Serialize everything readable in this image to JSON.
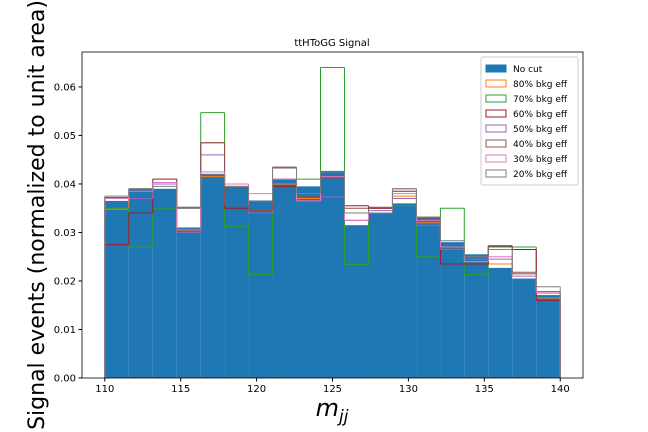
{
  "chart_data": {
    "type": "histogram",
    "title": "ttHToGG Signal",
    "xlabel": {
      "base": "m",
      "sub": "jj"
    },
    "ylabel": "Signal events (normalized to unit area)",
    "bins": [
      110,
      111.58,
      113.16,
      114.74,
      116.32,
      117.89,
      119.47,
      121.05,
      122.63,
      124.21,
      125.79,
      127.37,
      128.95,
      130.53,
      132.11,
      133.68,
      135.26,
      136.84,
      138.42,
      140
    ],
    "series": [
      {
        "name": "No cut",
        "color": "#1f77b4",
        "style": "filled",
        "values": [
          0.0365,
          0.039,
          0.039,
          0.031,
          0.042,
          0.0395,
          0.0365,
          0.041,
          0.0395,
          0.0427,
          0.0315,
          0.034,
          0.036,
          0.033,
          0.028,
          0.0255,
          0.0227,
          0.0205,
          0.017
        ]
      },
      {
        "name": "80% bkg eff",
        "color": "#ff7f0e",
        "style": "step",
        "values": [
          0.0348,
          0.037,
          0.04,
          0.0305,
          0.0415,
          0.0395,
          0.034,
          0.04,
          0.037,
          0.041,
          0.0325,
          0.034,
          0.0375,
          0.032,
          0.027,
          0.024,
          0.0235,
          0.021,
          0.0165
        ]
      },
      {
        "name": "70% bkg eff",
        "color": "#2ca02c",
        "style": "step",
        "values": [
          0.035,
          0.027,
          0.035,
          0.03,
          0.0547,
          0.0312,
          0.0213,
          0.041,
          0.041,
          0.064,
          0.0234,
          0.035,
          0.0355,
          0.025,
          0.035,
          0.0213,
          0.027,
          0.027,
          0.017
        ]
      },
      {
        "name": "60% bkg eff",
        "color": "#a0182e",
        "style": "step",
        "values": [
          0.0275,
          0.034,
          0.041,
          0.035,
          0.0485,
          0.035,
          0.0345,
          0.0395,
          0.0365,
          0.041,
          0.0355,
          0.035,
          0.0385,
          0.033,
          0.0235,
          0.0235,
          0.0272,
          0.0265,
          0.016
        ]
      },
      {
        "name": "50% bkg eff",
        "color": "#9467bd",
        "style": "step",
        "values": [
          0.037,
          0.037,
          0.04,
          0.03,
          0.046,
          0.04,
          0.034,
          0.041,
          0.0365,
          0.0373,
          0.0325,
          0.0345,
          0.037,
          0.0315,
          0.0265,
          0.0245,
          0.0245,
          0.0215,
          0.0175
        ]
      },
      {
        "name": "40% bkg eff",
        "color": "#8c564b",
        "style": "step",
        "values": [
          0.0372,
          0.039,
          0.041,
          0.0352,
          0.0485,
          0.0355,
          0.0345,
          0.0433,
          0.0375,
          0.041,
          0.035,
          0.0352,
          0.039,
          0.033,
          0.0268,
          0.024,
          0.0273,
          0.0218,
          0.0178
        ]
      },
      {
        "name": "30% bkg eff",
        "color": "#e377c2",
        "style": "step",
        "values": [
          0.037,
          0.0385,
          0.0403,
          0.031,
          0.0425,
          0.04,
          0.038,
          0.041,
          0.0365,
          0.0415,
          0.0325,
          0.034,
          0.038,
          0.0325,
          0.027,
          0.024,
          0.025,
          0.021,
          0.0175
        ]
      },
      {
        "name": "20% bkg eff",
        "color": "#7f7f7f",
        "style": "step",
        "values": [
          0.0375,
          0.039,
          0.0395,
          0.035,
          0.042,
          0.0395,
          0.0365,
          0.0435,
          0.038,
          0.0425,
          0.034,
          0.034,
          0.039,
          0.0332,
          0.0283,
          0.025,
          0.0265,
          0.0215,
          0.0188
        ]
      }
    ],
    "xlim": [
      108.5,
      141.5
    ],
    "ylim": [
      0,
      0.0672
    ],
    "xticks": [
      110,
      115,
      120,
      125,
      130,
      135,
      140
    ],
    "yticks": [
      {
        "value": 0,
        "label": "0.00"
      },
      {
        "value": 0.01,
        "label": "0.01"
      },
      {
        "value": 0.02,
        "label": "0.02"
      },
      {
        "value": 0.03,
        "label": "0.03"
      },
      {
        "value": 0.04,
        "label": "0.04"
      },
      {
        "value": 0.05,
        "label": "0.05"
      },
      {
        "value": 0.06,
        "label": "0.06"
      }
    ],
    "legend": "upper right"
  }
}
